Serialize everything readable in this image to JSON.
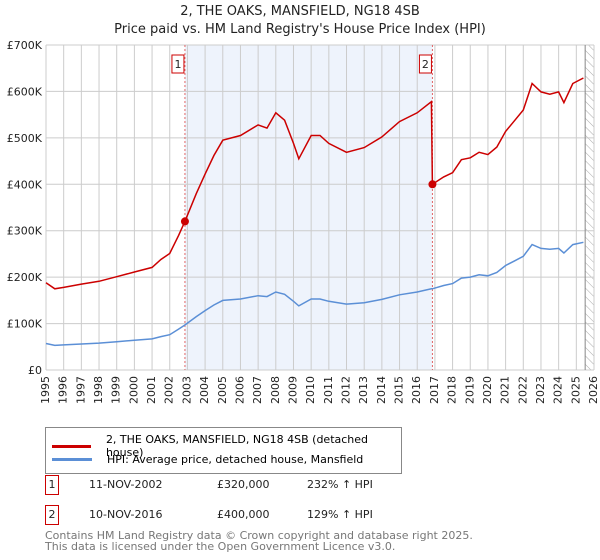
{
  "chart_data": {
    "type": "line",
    "title": "2, THE OAKS, MANSFIELD, NG18 4SB",
    "subtitle": "Price paid vs. HM Land Registry's House Price Index (HPI)",
    "xlim": [
      1995,
      2026
    ],
    "ylim": [
      0,
      700000
    ],
    "y_ticks": [
      "£0",
      "£100K",
      "£200K",
      "£300K",
      "£400K",
      "£500K",
      "£600K",
      "£700K"
    ],
    "x_ticks": [
      "1995",
      "1996",
      "1997",
      "1998",
      "1999",
      "2000",
      "2001",
      "2002",
      "2003",
      "2004",
      "2005",
      "2006",
      "2007",
      "2008",
      "2009",
      "2010",
      "2011",
      "2012",
      "2013",
      "2014",
      "2015",
      "2016",
      "2017",
      "2018",
      "2019",
      "2020",
      "2021",
      "2022",
      "2023",
      "2024",
      "2025",
      "2026"
    ],
    "grid": true,
    "series": [
      {
        "name": "2, THE OAKS, MANSFIELD, NG18 4SB (detached house)",
        "color": "#cc0000",
        "x": [
          1995,
          1995.5,
          1996,
          1997,
          1998,
          1999,
          2000,
          2001,
          2001.5,
          2002,
          2002.5,
          2002.86,
          2003.5,
          2004,
          2004.5,
          2005,
          2006,
          2007,
          2007.5,
          2008,
          2008.5,
          2009,
          2009.3,
          2010,
          2010.5,
          2011,
          2012,
          2013,
          2014,
          2015,
          2016,
          2016.8,
          2016.86,
          2017.5,
          2018,
          2018.5,
          2019,
          2019.5,
          2020,
          2020.5,
          2021,
          2021.5,
          2022,
          2022.5,
          2023,
          2023.5,
          2024,
          2024.3,
          2024.8,
          2025.4
        ],
        "y": [
          188,
          175,
          178,
          185,
          191,
          201,
          211,
          221,
          238,
          251,
          290,
          320,
          380,
          422,
          462,
          495,
          505,
          528,
          521,
          554,
          538,
          488,
          455,
          505,
          505,
          488,
          469,
          479,
          502,
          535,
          554,
          578,
          400,
          416,
          425,
          453,
          457,
          469,
          464,
          480,
          514,
          537,
          560,
          617,
          599,
          594,
          599,
          576,
          617,
          629
        ]
      },
      {
        "name": "HPI: Average price, detached house, Mansfield",
        "color": "#5b8fd6",
        "x": [
          1995,
          1995.5,
          1996,
          1997,
          1998,
          1999,
          2000,
          2001,
          2001.5,
          2002,
          2002.5,
          2002.86,
          2003.5,
          2004,
          2004.5,
          2005,
          2006,
          2007,
          2007.5,
          2008,
          2008.5,
          2009,
          2009.3,
          2010,
          2010.5,
          2011,
          2012,
          2013,
          2014,
          2015,
          2016,
          2016.8,
          2016.86,
          2017.5,
          2018,
          2018.5,
          2019,
          2019.5,
          2020,
          2020.5,
          2021,
          2021.5,
          2022,
          2022.5,
          2023,
          2023.5,
          2024,
          2024.3,
          2024.8,
          2025.4
        ],
        "y": [
          57,
          53,
          54,
          56,
          58,
          61,
          64,
          67,
          72,
          76,
          88,
          97,
          115,
          128,
          140,
          150,
          153,
          160,
          158,
          168,
          163,
          148,
          138,
          153,
          153,
          148,
          142,
          145,
          152,
          162,
          168,
          175,
          175,
          182,
          186,
          198,
          200,
          205,
          203,
          210,
          225,
          235,
          245,
          270,
          262,
          260,
          262,
          252,
          270,
          275
        ]
      }
    ],
    "y_units": "thousands GBP",
    "sales": [
      {
        "label": "1",
        "x": 2002.86,
        "y": 320,
        "date": "11-NOV-2002",
        "price": "£320,000",
        "hpi": "232% ↑ HPI"
      },
      {
        "label": "2",
        "x": 2016.86,
        "y": 400,
        "date": "10-NOV-2016",
        "price": "£400,000",
        "hpi": "129% ↑ HPI"
      }
    ],
    "shaded_range": [
      2002.86,
      2016.86
    ],
    "hatched_from": 2025.5,
    "legend_placement": "below"
  },
  "footer": {
    "line1": "Contains HM Land Registry data © Crown copyright and database right 2025.",
    "line2": "This data is licensed under the Open Government Licence v3.0."
  }
}
